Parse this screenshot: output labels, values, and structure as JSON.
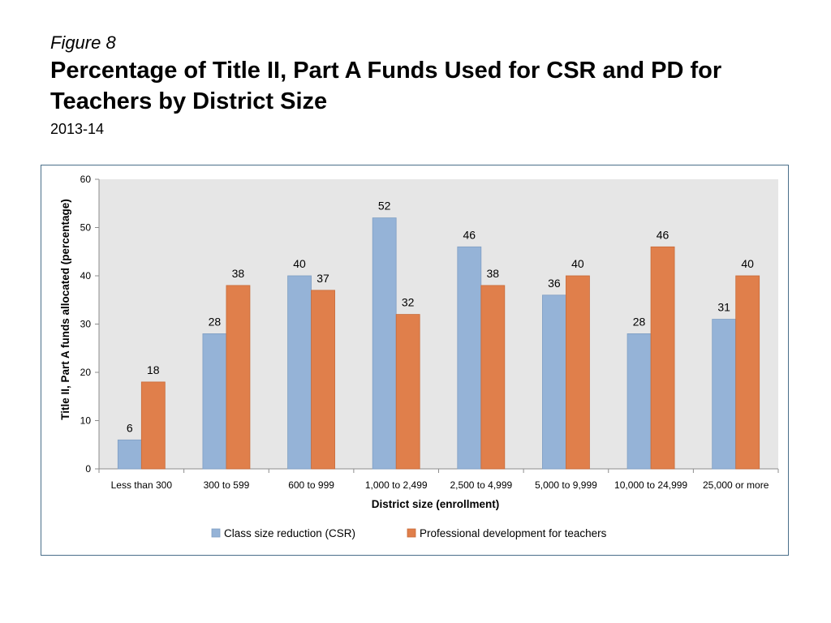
{
  "header": {
    "figure_label": "Figure 8",
    "title": "Percentage of Title II, Part A Funds Used for CSR and PD for Teachers by District Size",
    "subtitle": "2013-14"
  },
  "chart_data": {
    "type": "bar",
    "categories": [
      "Less than 300",
      "300 to 599",
      "600 to 999",
      "1,000 to 2,499",
      "2,500 to 4,999",
      "5,000 to 9,999",
      "10,000 to 24,999",
      "25,000 or more"
    ],
    "series": [
      {
        "name": "Class size reduction (CSR)",
        "values": [
          6,
          28,
          40,
          52,
          46,
          36,
          28,
          31
        ],
        "color": "#95b3d7"
      },
      {
        "name": "Professional development for teachers",
        "values": [
          18,
          38,
          37,
          32,
          38,
          40,
          46,
          40
        ],
        "color": "#e07f4b"
      }
    ],
    "xlabel": "District size (enrollment)",
    "ylabel": "Title II, Part A funds allocated (percentage)",
    "ylim": [
      0,
      60
    ],
    "yticks": [
      0,
      10,
      20,
      30,
      40,
      50,
      60
    ],
    "legend_position": "bottom",
    "plot_background": "#e6e6e6",
    "gridlines": false
  }
}
